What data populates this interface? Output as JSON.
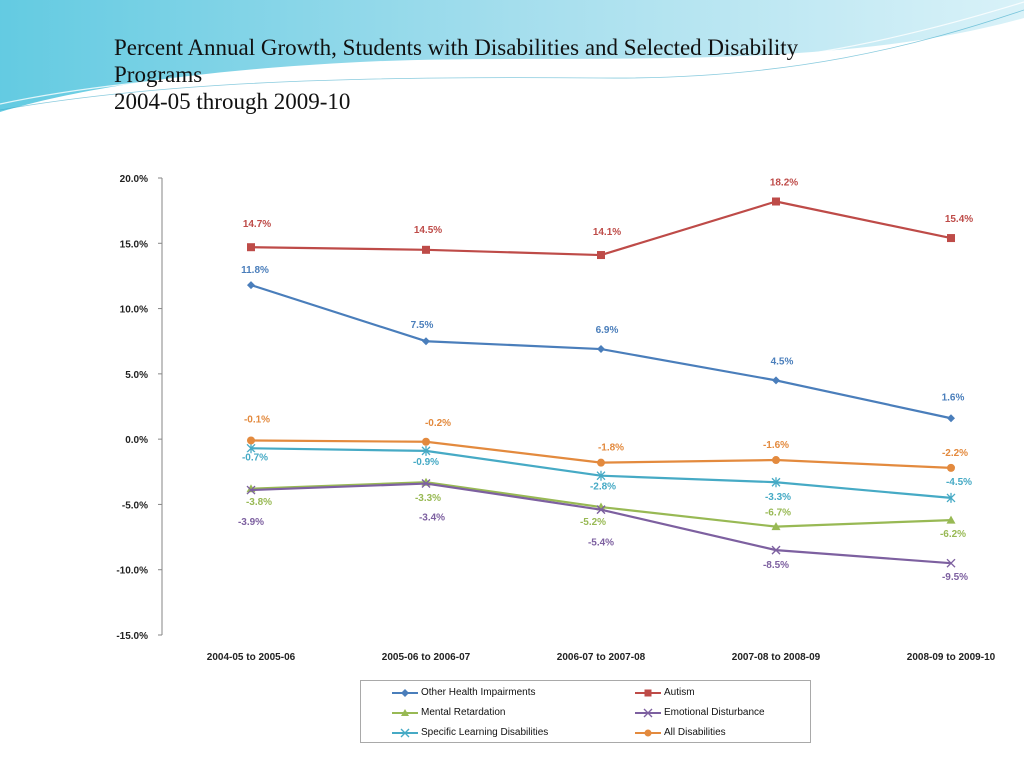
{
  "slide": {
    "title_lines": [
      "Percent Annual Growth, Students with Disabilities and Selected Disability",
      "Programs",
      "2004-05 through 2009-10"
    ]
  },
  "colors": {
    "header_wave": "#5bc8e0",
    "header_wave_light": "#bfe9f3"
  },
  "chart_data": {
    "type": "line",
    "title": "",
    "xlabel": "",
    "ylabel": "",
    "ylim": [
      -15,
      20
    ],
    "yticks": [
      20,
      15,
      10,
      5,
      0,
      -5,
      -10,
      -15
    ],
    "ytick_labels": [
      "20.0%",
      "15.0%",
      "10.0%",
      "5.0%",
      "0.0%",
      "-5.0%",
      "-10.0%",
      "-15.0%"
    ],
    "categories": [
      "2004-05 to 2005-06",
      "2005-06 to 2006-07",
      "2006-07 to 2007-08",
      "2007-08 to 2008-09",
      "2008-09 to 2009-10"
    ],
    "grid": false,
    "legend_position": "bottom",
    "series": [
      {
        "name": "Other Health Impairments",
        "color": "#4a7ebb",
        "marker": "diamond",
        "values": [
          11.8,
          7.5,
          6.9,
          4.5,
          1.6
        ],
        "labels": [
          "11.8%",
          "7.5%",
          "6.9%",
          "4.5%",
          "1.6%"
        ]
      },
      {
        "name": "Autism",
        "color": "#be4b48",
        "marker": "square",
        "values": [
          14.7,
          14.5,
          14.1,
          18.2,
          15.4
        ],
        "labels": [
          "14.7%",
          "14.5%",
          "14.1%",
          "18.2%",
          "15.4%"
        ]
      },
      {
        "name": "Mental Retardation",
        "color": "#98b954",
        "marker": "triangle",
        "values": [
          -3.8,
          -3.3,
          -5.2,
          -6.7,
          -6.2
        ],
        "labels": [
          "-3.8%",
          "-3.3%",
          "-5.2%",
          "-6.7%",
          "-6.2%"
        ]
      },
      {
        "name": "Emotional Disturbance",
        "color": "#7d60a0",
        "marker": "x",
        "values": [
          -3.9,
          -3.4,
          -5.4,
          -8.5,
          -9.5
        ],
        "labels": [
          "-3.9%",
          "-3.4%",
          "-5.4%",
          "-8.5%",
          "-9.5%"
        ]
      },
      {
        "name": "Specific Learning Disabilities",
        "color": "#46aac5",
        "marker": "star",
        "values": [
          -0.7,
          -0.9,
          -2.8,
          -3.3,
          -4.5
        ],
        "labels": [
          "-0.7%",
          "-0.9%",
          "-2.8%",
          "-3.3%",
          "-4.5%"
        ]
      },
      {
        "name": "All Disabilities",
        "color": "#e38a3e",
        "marker": "circle",
        "values": [
          -0.1,
          -0.2,
          -1.8,
          -1.6,
          -2.2
        ],
        "labels": [
          "-0.1%",
          "-0.2%",
          "-1.8%",
          "-1.6%",
          "-2.2%"
        ]
      }
    ]
  }
}
